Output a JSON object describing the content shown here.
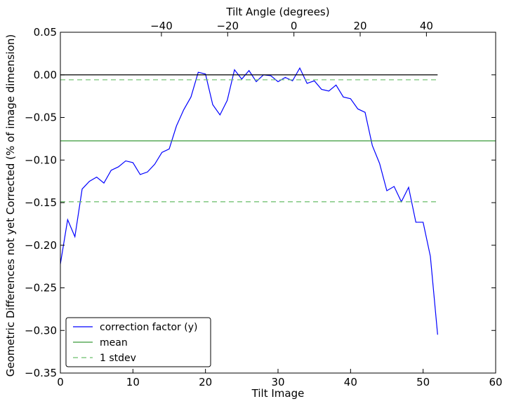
{
  "chart_data": {
    "type": "line",
    "xlabel": "Tilt Image",
    "ylabel": "Geometric Differences not yet Corrected (% of image dimension)",
    "top_xlabel": "Tilt Angle (degrees)",
    "xlim": [
      0,
      60
    ],
    "ylim": [
      -0.35,
      0.05
    ],
    "x_ticks": [
      0,
      10,
      20,
      30,
      40,
      50,
      60
    ],
    "y_ticks": [
      -0.35,
      -0.3,
      -0.25,
      -0.2,
      -0.15,
      -0.1,
      -0.05,
      0.0,
      0.05
    ],
    "top_ticks": [
      -40,
      -20,
      0,
      20,
      40
    ],
    "top_axis_map": {
      "tilt_angle_at_image_0": -70.5,
      "degrees_per_image": 2.19
    },
    "grid": false,
    "legend_position": "bottom-left",
    "series": [
      {
        "name": "correction factor (y)",
        "color": "#0000ff",
        "style": "solid",
        "x": [
          0,
          1,
          2,
          3,
          4,
          5,
          6,
          7,
          8,
          9,
          10,
          11,
          12,
          13,
          14,
          15,
          16,
          17,
          18,
          19,
          20,
          21,
          22,
          23,
          24,
          25,
          26,
          27,
          28,
          29,
          30,
          31,
          32,
          33,
          34,
          35,
          36,
          37,
          38,
          39,
          40,
          41,
          42,
          43,
          44,
          45,
          46,
          47,
          48,
          49,
          50,
          51,
          52
        ],
        "y": [
          -0.222,
          -0.17,
          -0.19,
          -0.134,
          -0.125,
          -0.12,
          -0.127,
          -0.112,
          -0.108,
          -0.101,
          -0.103,
          -0.117,
          -0.114,
          -0.105,
          -0.091,
          -0.087,
          -0.06,
          -0.041,
          -0.026,
          0.003,
          0.001,
          -0.035,
          -0.047,
          -0.03,
          0.006,
          -0.005,
          0.005,
          -0.008,
          0.0,
          -0.001,
          -0.008,
          -0.003,
          -0.007,
          0.008,
          -0.01,
          -0.007,
          -0.017,
          -0.019,
          -0.012,
          -0.026,
          -0.028,
          -0.04,
          -0.044,
          -0.083,
          -0.104,
          -0.136,
          -0.131,
          -0.149,
          -0.132,
          -0.173,
          -0.173,
          -0.213,
          -0.305
        ]
      },
      {
        "name": "",
        "color": "#000000",
        "style": "solid",
        "x": [
          0,
          52
        ],
        "y": [
          0.0,
          0.0
        ]
      },
      {
        "name": "mean",
        "color": "#3a9a3a",
        "style": "solid",
        "x": [
          0,
          60
        ],
        "y": [
          -0.0775,
          -0.0775
        ]
      },
      {
        "name": "1 stdev",
        "color": "#6abf6a",
        "style": "dashed",
        "x": [
          0,
          52
        ],
        "y": [
          -0.0058,
          -0.0058
        ]
      },
      {
        "name": "",
        "color": "#6abf6a",
        "style": "dashed",
        "x": [
          0,
          52
        ],
        "y": [
          -0.149,
          -0.149
        ]
      }
    ],
    "legend": [
      {
        "label": "correction factor (y)",
        "color": "#0000ff",
        "style": "solid"
      },
      {
        "label": "mean",
        "color": "#3a9a3a",
        "style": "solid"
      },
      {
        "label": "1 stdev",
        "color": "#6abf6a",
        "style": "dashed"
      }
    ]
  }
}
